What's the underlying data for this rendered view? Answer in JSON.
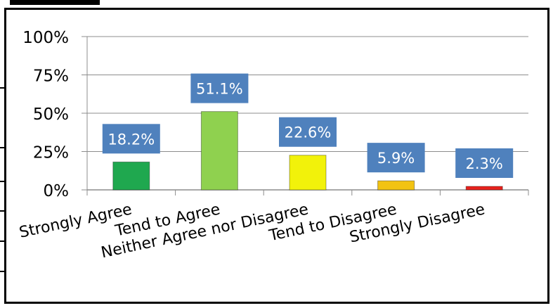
{
  "chart_data": {
    "type": "bar",
    "title": "",
    "xlabel": "",
    "ylabel": "",
    "categories": [
      "Strongly Agree",
      "Tend to Agree",
      "Neither Agree nor Disagree",
      "Tend to Disagree",
      "Strongly Disagree"
    ],
    "values": [
      18.2,
      51.1,
      22.6,
      5.9,
      2.3
    ],
    "data_labels": [
      "18.2%",
      "51.1%",
      "22.6%",
      "5.9%",
      "2.3%"
    ],
    "y_ticks": [
      "0%",
      "25%",
      "50%",
      "75%",
      "100%"
    ],
    "y_tick_values": [
      0,
      25,
      50,
      75,
      100
    ],
    "ylim": [
      0,
      100
    ],
    "grid": true,
    "legend": "none",
    "colors": {
      "bars": [
        "#1fa84f",
        "#8fd14f",
        "#f2f20a",
        "#f2c312",
        "#e8221d"
      ],
      "label_box": "#4f81bd",
      "label_text": "#ffffff",
      "grid": "#8c8c8c",
      "axis": "#8c8c8c"
    }
  }
}
